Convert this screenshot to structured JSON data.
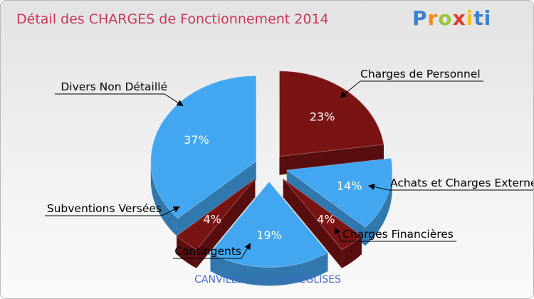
{
  "logo": [
    {
      "ch": "P",
      "color": "#3c7fcf"
    },
    {
      "ch": "r",
      "color": "#ef8a1c"
    },
    {
      "ch": "o",
      "color": "#9bc53d"
    },
    {
      "ch": "x",
      "color": "#e23b2e"
    },
    {
      "ch": "i",
      "color": "#f2c31f"
    },
    {
      "ch": "ti",
      "color": "#3c7fcf"
    }
  ],
  "chart_data": {
    "type": "pie",
    "title": "Détail des CHARGES de Fonctionnement 2014",
    "footer": "CANVILLE-LES-DEUX-ÉGLISES",
    "colors": {
      "blue": "#42a7f0",
      "red": "#7a1414",
      "title": "#c8365a",
      "footer": "#4169c8"
    },
    "slices": [
      {
        "label": "Charges de Personnel",
        "value": 23,
        "display": "23%",
        "color": "#7a1414"
      },
      {
        "label": "Achats et Charges Externes",
        "value": 14,
        "display": "14%",
        "color": "#42a7f0"
      },
      {
        "label": "Charges Financières",
        "value": 4,
        "display": "4%",
        "color": "#7a1414"
      },
      {
        "label": "Contingents",
        "value": 19,
        "display": "19%",
        "color": "#42a7f0"
      },
      {
        "label": "Subventions Versées",
        "value": 4,
        "display": "4%",
        "color": "#7a1414"
      },
      {
        "label": "Divers Non Détaillé",
        "value": 37,
        "display": "37%",
        "color": "#42a7f0"
      }
    ]
  }
}
